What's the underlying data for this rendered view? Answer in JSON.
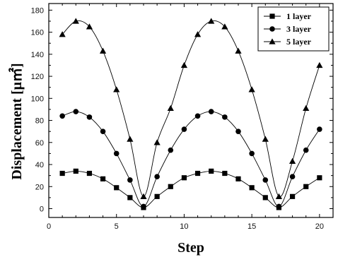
{
  "chart_data": {
    "type": "line",
    "xlabel": "Step",
    "ylabel": "Displacement [μ㎡]",
    "xlim": [
      0,
      21
    ],
    "ylim": [
      -8,
      186
    ],
    "xticks": [
      0,
      5,
      10,
      15,
      20
    ],
    "yticks": [
      0,
      20,
      40,
      60,
      80,
      100,
      120,
      140,
      160,
      180
    ],
    "grid": false,
    "legend_position": "top-right",
    "x": [
      1,
      2,
      3,
      4,
      5,
      6,
      7,
      8,
      9,
      10,
      11,
      12,
      13,
      14,
      15,
      16,
      17,
      18,
      19,
      20
    ],
    "series": [
      {
        "name": "1 layer",
        "marker": "square",
        "values": [
          32,
          34,
          32,
          27,
          19,
          10,
          1,
          11,
          20,
          28,
          32,
          34,
          32,
          27,
          19,
          10,
          1,
          11,
          20,
          28
        ]
      },
      {
        "name": "3 layer",
        "marker": "circle",
        "values": [
          84,
          88,
          83,
          70,
          50,
          26,
          2,
          29,
          53,
          72,
          84,
          88,
          83,
          70,
          50,
          26,
          2,
          29,
          53,
          72
        ]
      },
      {
        "name": "5 layer",
        "marker": "triangle",
        "values": [
          158,
          170,
          165,
          143,
          108,
          63,
          11,
          60,
          91,
          130,
          158,
          170,
          165,
          143,
          108,
          63,
          11,
          43,
          91,
          130
        ]
      }
    ],
    "colors": {
      "line": "#000000",
      "marker": "#000000"
    }
  }
}
